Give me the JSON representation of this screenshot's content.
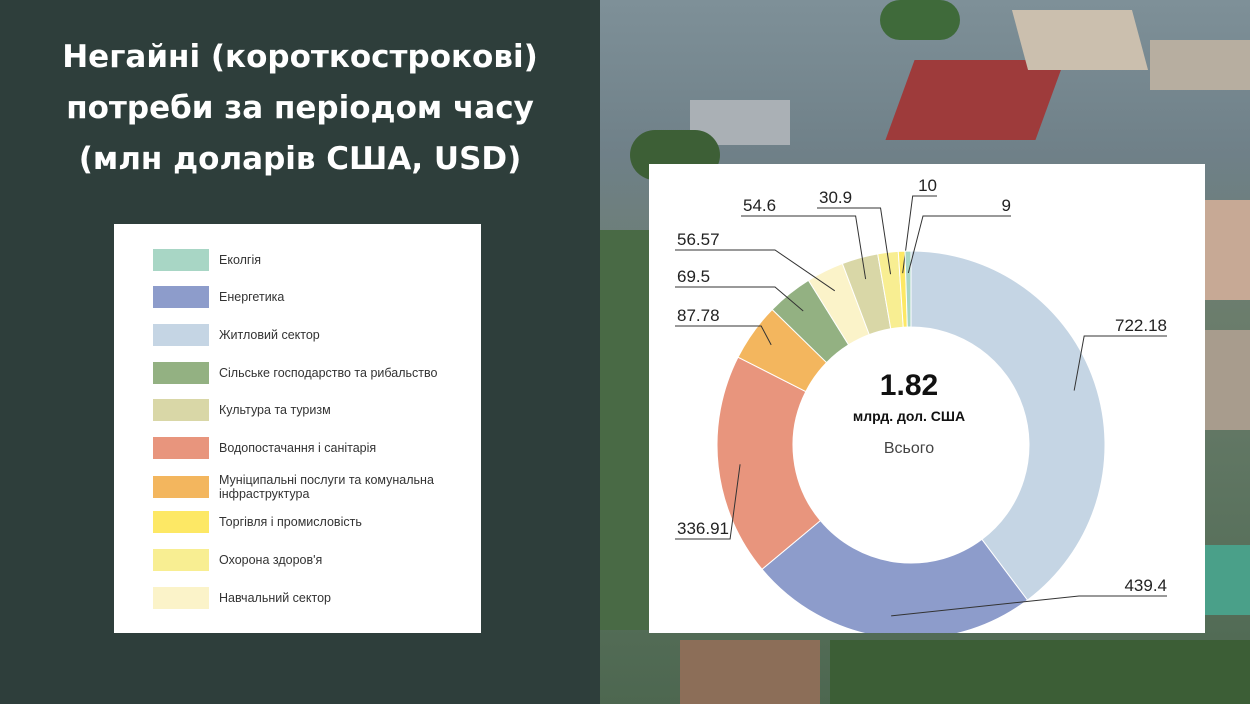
{
  "slide": {
    "title": "Негайні (короткострокові) потреби за періодом часу (млн доларів США, USD)"
  },
  "chart_data": {
    "type": "pie",
    "donut": true,
    "center": {
      "total": "1.82",
      "unit": "млрд. дол. США",
      "caption": "Всього"
    },
    "legend_placement": "left",
    "categories": [
      "Житловий сектор",
      "Енергетика",
      "Водопостачання і санітарія",
      "Муніципальні послуги та комунальна інфраструктура",
      "Сільське господарство та рибальство",
      "Навчальний сектор",
      "Культура та туризм",
      "Охорона здоров'я",
      "Торгівля і промисловість",
      "Еколгія"
    ],
    "values": [
      722.18,
      439.4,
      336.91,
      87.78,
      69.5,
      56.57,
      54.6,
      30.9,
      10,
      9
    ],
    "value_labels": [
      "722.18",
      "439.4",
      "336.91",
      "87.78",
      "69.5",
      "56.57",
      "54.6",
      "30.9",
      "10",
      "9"
    ],
    "colors": [
      "#c5d5e4",
      "#8d9ccb",
      "#e8957d",
      "#f3b65e",
      "#93b182",
      "#fbf3c9",
      "#d9d7a7",
      "#f8ee92",
      "#fde865",
      "#a8d6c5"
    ]
  },
  "legend": [
    {
      "label": "Еколгія",
      "color": "#a8d6c5"
    },
    {
      "label": "Енергетика",
      "color": "#8d9ccb"
    },
    {
      "label": "Житловий сектор",
      "color": "#c5d5e4"
    },
    {
      "label": "Сільське господарство та рибальство",
      "color": "#93b182"
    },
    {
      "label": "Культура та туризм",
      "color": "#d9d7a7"
    },
    {
      "label": "Водопостачання і санітарія",
      "color": "#e8957d"
    },
    {
      "label": "Муніципальні послуги та комунальна інфраструктура",
      "color": "#f3b65e"
    },
    {
      "label": "Торгівля і промисловість",
      "color": "#fde865"
    },
    {
      "label": "Охорона здоров'я",
      "color": "#f8ee92"
    },
    {
      "label": "Навчальний сектор",
      "color": "#fbf3c9"
    }
  ]
}
